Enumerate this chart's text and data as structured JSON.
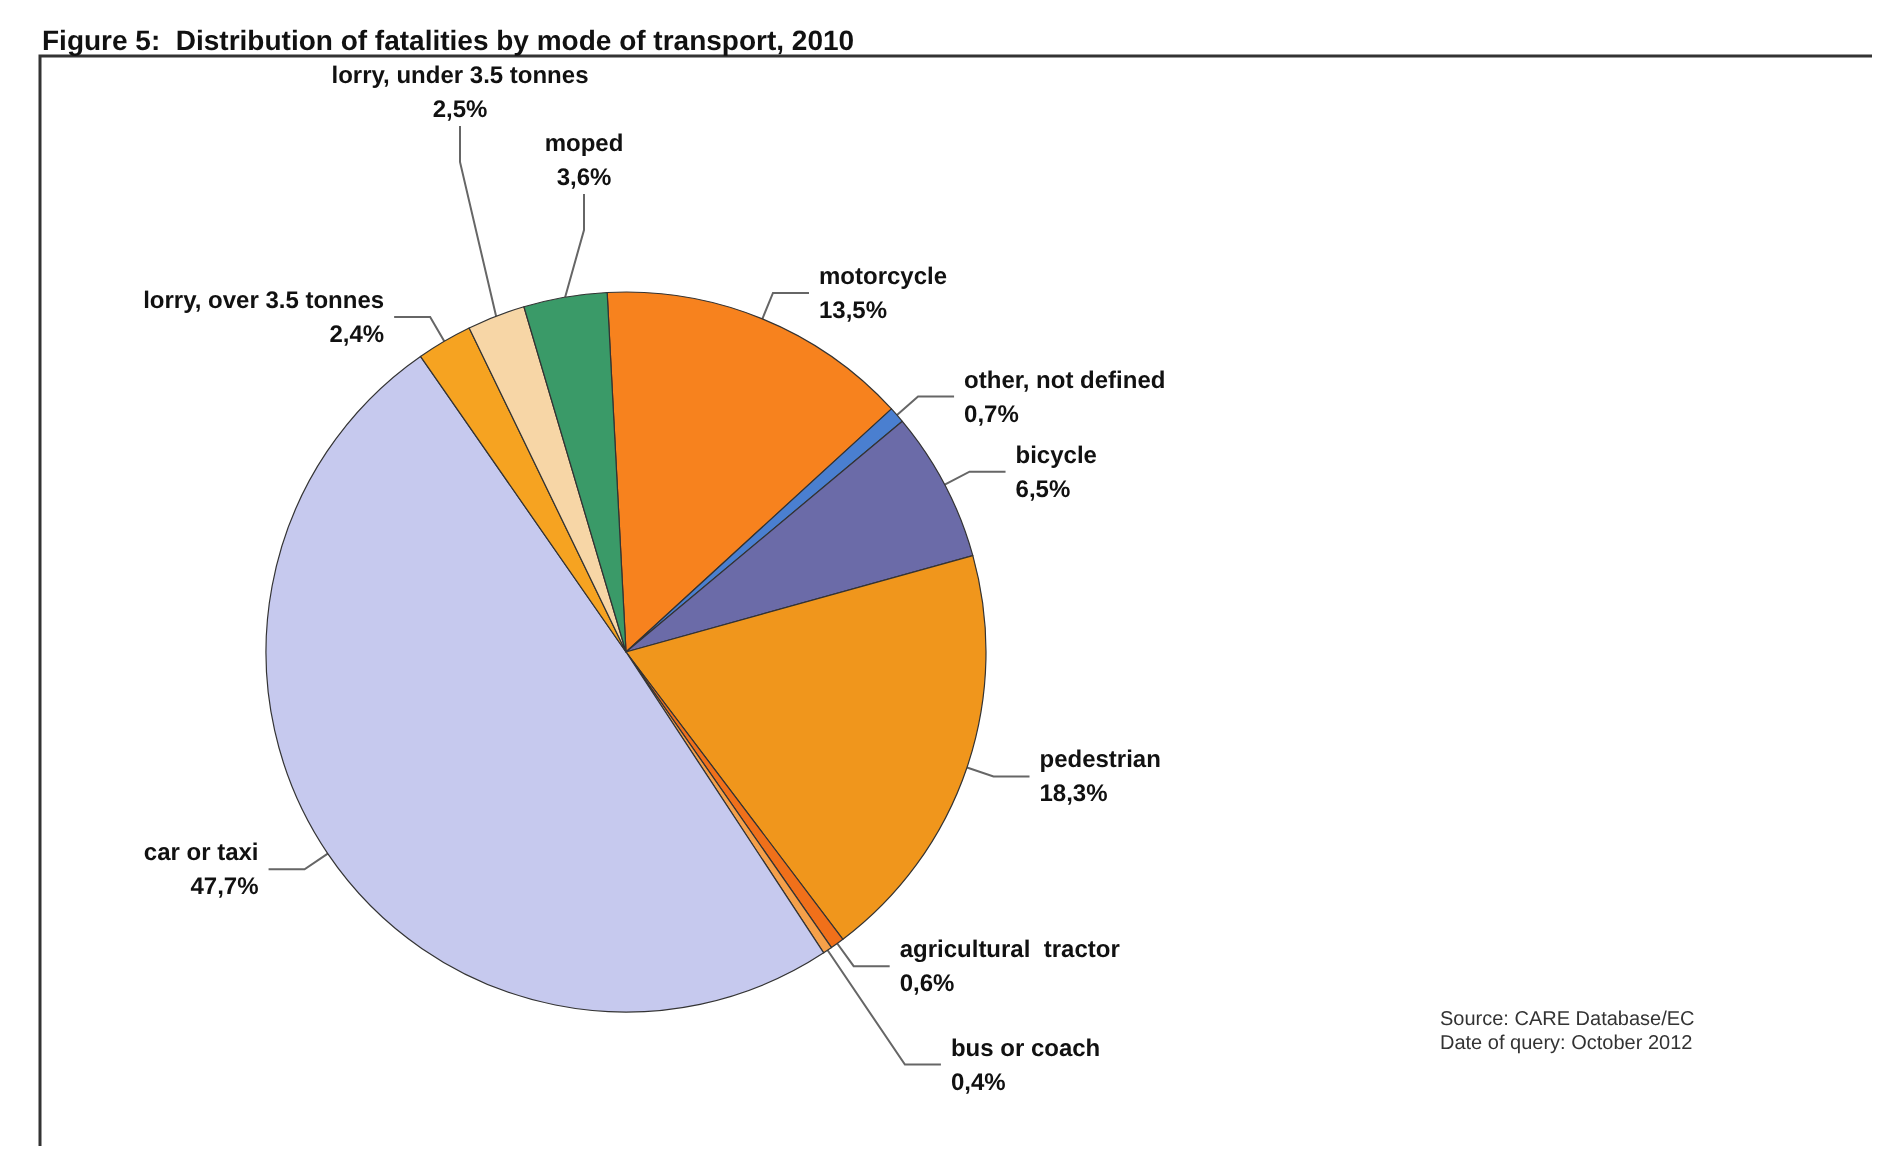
{
  "chart_data": {
    "type": "pie",
    "title": "Figure 5:  Distribution of fatalities by mode of transport, 2010",
    "categories": [
      "motorcycle",
      "other, not defined",
      "bicycle",
      "pedestrian",
      "agricultural  tractor",
      "bus or coach",
      "car or taxi",
      "lorry, over 3.5 tonnes",
      "lorry, under 3.5 tonnes",
      "moped"
    ],
    "values": [
      13.5,
      0.7,
      6.5,
      18.3,
      0.6,
      0.4,
      47.7,
      2.4,
      2.5,
      3.6
    ],
    "value_labels": [
      "13,5%",
      "0,7%",
      "6,5%",
      "18,3%",
      "0,6%",
      "0,4%",
      "47,7%",
      "2,4%",
      "2,5%",
      "3,6%"
    ],
    "colors": [
      "#f7821e",
      "#4a7fd0",
      "#6b6ba8",
      "#f0961c",
      "#f0701a",
      "#f5a04a",
      "#c6c9ee",
      "#f6a321",
      "#f7d6a6",
      "#3a9a68"
    ],
    "annotations": [
      "Source: CARE Database/EC",
      "Date of query: October 2012"
    ]
  }
}
